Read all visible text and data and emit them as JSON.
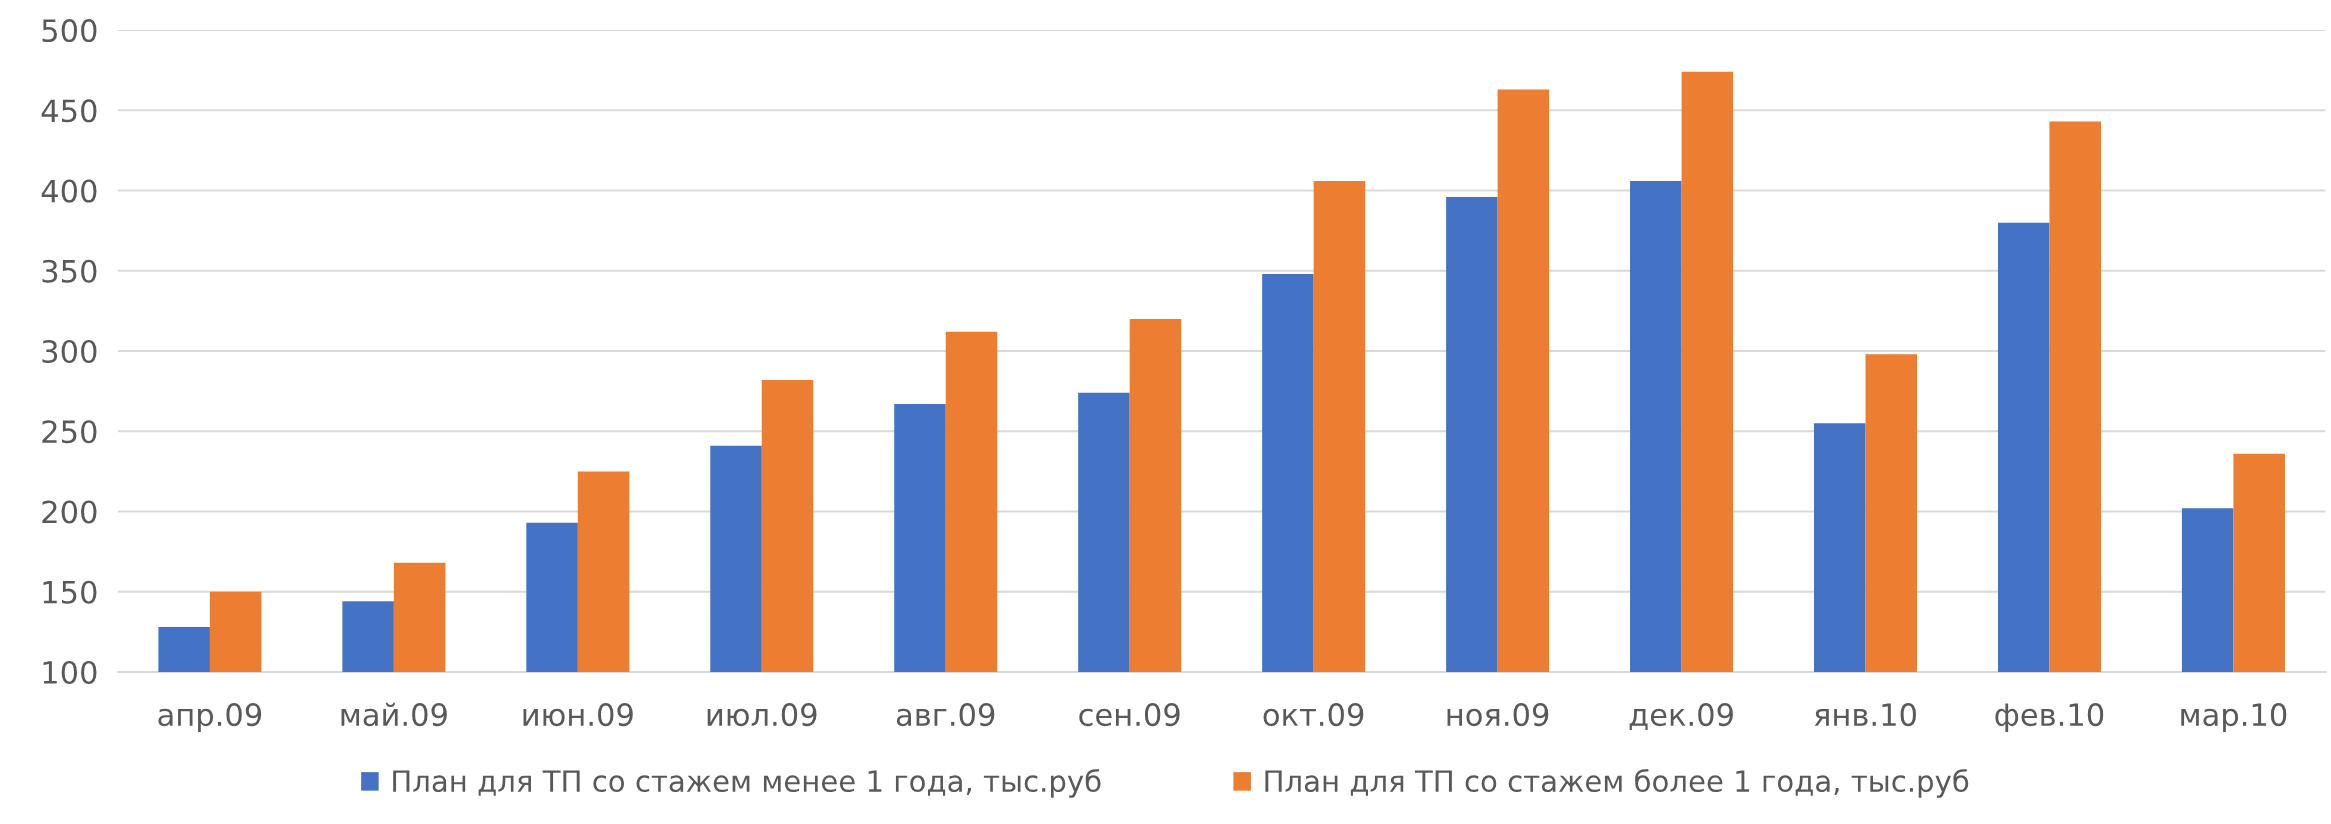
{
  "chart_data": {
    "type": "bar",
    "categories": [
      "апр.09",
      "май.09",
      "июн.09",
      "июл.09",
      "авг.09",
      "сен.09",
      "окт.09",
      "ноя.09",
      "дек.09",
      "янв.10",
      "фев.10",
      "мар.10"
    ],
    "series": [
      {
        "name": "План для ТП со стажем менее 1 года, тыс.руб",
        "color": "#4472c4",
        "values": [
          128,
          144,
          193,
          241,
          267,
          274,
          348,
          396,
          406,
          255,
          380,
          202
        ]
      },
      {
        "name": "План для ТП со стажем более 1 года, тыс.руб",
        "color": "#ed7d31",
        "values": [
          150,
          168,
          225,
          282,
          312,
          320,
          406,
          463,
          474,
          298,
          443,
          236
        ]
      }
    ],
    "ylim": [
      100,
      500
    ],
    "yticks": [
      100,
      150,
      200,
      250,
      300,
      350,
      400,
      450,
      500
    ],
    "grid": "y",
    "legend": "bottom"
  }
}
